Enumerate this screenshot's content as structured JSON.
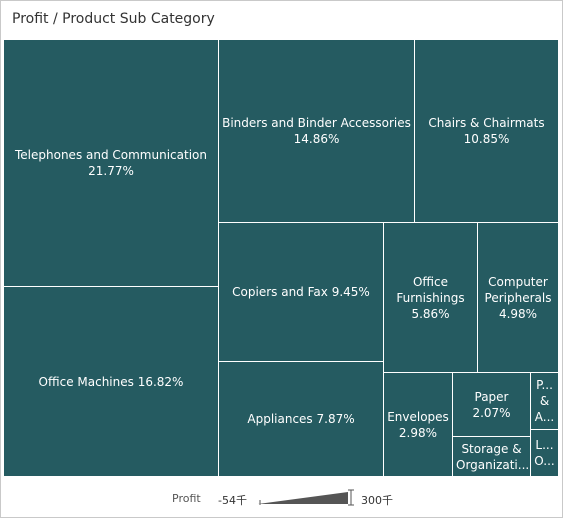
{
  "title": "Profit / Product Sub Category",
  "chart_data": {
    "type": "treemap",
    "measure": "Profit",
    "items": [
      {
        "name": "Telephones and Communication",
        "label": "Telephones and Communication\n21.77%",
        "percent": 21.77
      },
      {
        "name": "Office Machines",
        "label": "Office Machines 16.82%",
        "percent": 16.82
      },
      {
        "name": "Binders and Binder Accessories",
        "label": "Binders and Binder Accessories\n14.86%",
        "percent": 14.86
      },
      {
        "name": "Chairs & Chairmats",
        "label": "Chairs & Chairmats\n10.85%",
        "percent": 10.85
      },
      {
        "name": "Copiers and Fax",
        "label": "Copiers and Fax 9.45%",
        "percent": 9.45
      },
      {
        "name": "Appliances",
        "label": "Appliances 7.87%",
        "percent": 7.87
      },
      {
        "name": "Office Furnishings",
        "label": "Office\nFurnishings\n5.86%",
        "percent": 5.86
      },
      {
        "name": "Computer Peripherals",
        "label": "Computer\nPeripherals\n4.98%",
        "percent": 4.98
      },
      {
        "name": "Envelopes",
        "label": "Envelopes\n2.98%",
        "percent": 2.98
      },
      {
        "name": "Paper",
        "label": "Paper 2.07%",
        "percent": 2.07
      },
      {
        "name": "Storage & Organization",
        "label": "Storage &\nOrganizati...",
        "percent": null
      },
      {
        "name": "P... & A...",
        "label": "P...\n&\nA...",
        "percent": null
      },
      {
        "name": "L... O...",
        "label": "L...\nO...",
        "percent": null
      }
    ]
  },
  "legend": {
    "title": "Profit",
    "min_label": "-54千",
    "max_label": "300千",
    "color": "#555555"
  },
  "colors": {
    "cell": "#255b61",
    "cell_text": "#ffffff",
    "divider": "#ffffff"
  }
}
